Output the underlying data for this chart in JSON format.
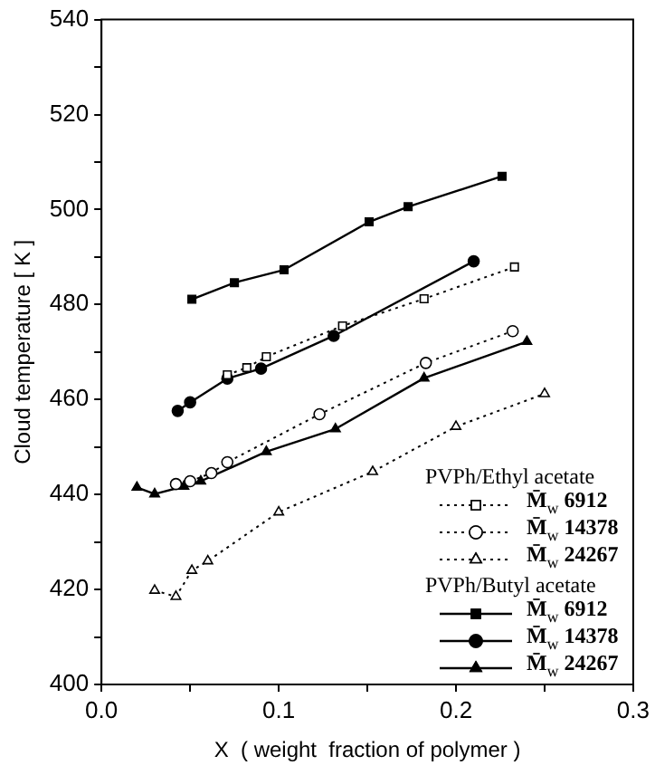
{
  "chart_data": {
    "type": "line",
    "xlabel": "X  ( weight  fraction of polymer )",
    "ylabel": "Cloud temperature [ K ]",
    "xlim": [
      0,
      0.3
    ],
    "ylim": [
      400,
      540
    ],
    "xticks": [
      {
        "value": 0,
        "label": "0.0"
      },
      {
        "value": 0.05,
        "label": null
      },
      0.1,
      {
        "value": 0.15,
        "label": null
      },
      0.2,
      {
        "value": 0.25,
        "label": null
      },
      0.3
    ],
    "yticks": [
      400,
      {
        "value": 410,
        "label": null
      },
      420,
      {
        "value": 430,
        "label": null
      },
      440,
      {
        "value": 450,
        "label": null
      },
      460,
      {
        "value": 470,
        "label": null
      },
      480,
      {
        "value": 490,
        "label": null
      },
      500,
      {
        "value": 510,
        "label": null
      },
      520,
      {
        "value": 530,
        "label": null
      },
      540
    ],
    "grid": false,
    "legend": "bottom right",
    "annotations": [
      "PVPh/Ethyl acetate",
      "PVPh/Butyl acetate"
    ],
    "series": [
      {
        "name": "M̄$_{w}$ 6912",
        "color": "#000000",
        "marker": "square",
        "line_style": "dotted",
        "x": [
          0.071,
          0.082,
          0.093,
          0.136,
          0.182,
          0.233
        ],
        "values": [
          465.2,
          466.7,
          469,
          475.5,
          481.2,
          487.9
        ]
      },
      {
        "name": "M̄$_{w}$ 14378",
        "color": "#000000",
        "marker": "circle",
        "line_style": "dotted",
        "x": [
          0.042,
          0.05,
          0.062,
          0.071,
          0.123,
          0.183,
          0.232
        ],
        "values": [
          442.2,
          442.8,
          444.5,
          446.8,
          456.9,
          467.7,
          474.4
        ]
      },
      {
        "name": "M̄$_{w}$ 24267",
        "color": "#000000",
        "marker": "triangle",
        "line_style": "dotted",
        "x": [
          0.03,
          0.042,
          0.051,
          0.06,
          0.1,
          0.153,
          0.2,
          0.25
        ],
        "values": [
          419.8,
          418.5,
          424,
          426,
          436.3,
          444.8,
          454.3,
          461.2
        ]
      },
      {
        "name": "M̄$_{w}$ 6912",
        "color": "#000000",
        "marker": "square",
        "line_style": "solid",
        "x": [
          0.051,
          0.075,
          0.103,
          0.151,
          0.173,
          0.226
        ],
        "values": [
          481.1,
          484.6,
          487.3,
          497.4,
          500.6,
          507
        ]
      },
      {
        "name": "M̄$_{w}$ 14378",
        "color": "#000000",
        "marker": "circle",
        "line_style": "solid",
        "x": [
          0.043,
          0.05,
          0.071,
          0.09,
          0.131,
          0.21
        ],
        "values": [
          457.6,
          459.4,
          464.4,
          466.5,
          473.4,
          489.1
        ]
      },
      {
        "name": "M̄$_{w}$ 24267",
        "color": "#000000",
        "marker": "triangle",
        "line_style": "solid",
        "x": [
          0.02,
          0.03,
          0.0465,
          0.056,
          0.093,
          0.132,
          0.182,
          0.24
        ],
        "values": [
          441.5,
          440.1,
          441.7,
          442.8,
          449,
          453.8,
          464.5,
          472.2
        ]
      }
    ]
  }
}
